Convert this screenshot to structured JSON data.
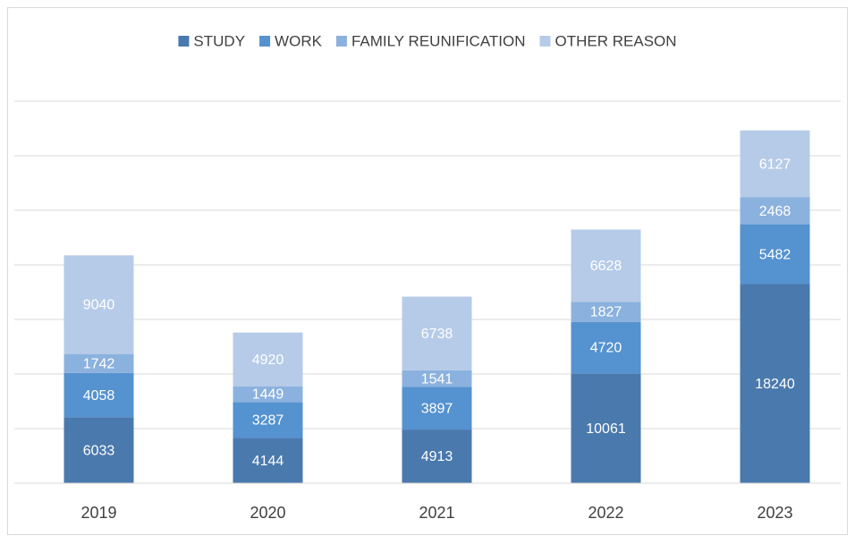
{
  "chart_data": {
    "type": "bar",
    "stacked": true,
    "categories": [
      "2019",
      "2020",
      "2021",
      "2022",
      "2023"
    ],
    "series": [
      {
        "name": "STUDY",
        "color": "#4a79ad",
        "values": [
          6033,
          4144,
          4913,
          10061,
          18240
        ]
      },
      {
        "name": "WORK",
        "color": "#5592d0",
        "values": [
          4058,
          3287,
          3897,
          4720,
          5482
        ]
      },
      {
        "name": "FAMILY REUNIFICATION",
        "color": "#8bb1de",
        "values": [
          1742,
          1449,
          1541,
          1827,
          2468
        ]
      },
      {
        "name": "OTHER REASON",
        "color": "#b6cbe8",
        "values": [
          9040,
          4920,
          6738,
          6628,
          6127
        ]
      }
    ],
    "ylim": [
      0,
      35000
    ],
    "yticks": [
      0,
      5000,
      10000,
      15000,
      20000,
      25000,
      30000,
      35000
    ],
    "grid": true,
    "legend": "top"
  }
}
